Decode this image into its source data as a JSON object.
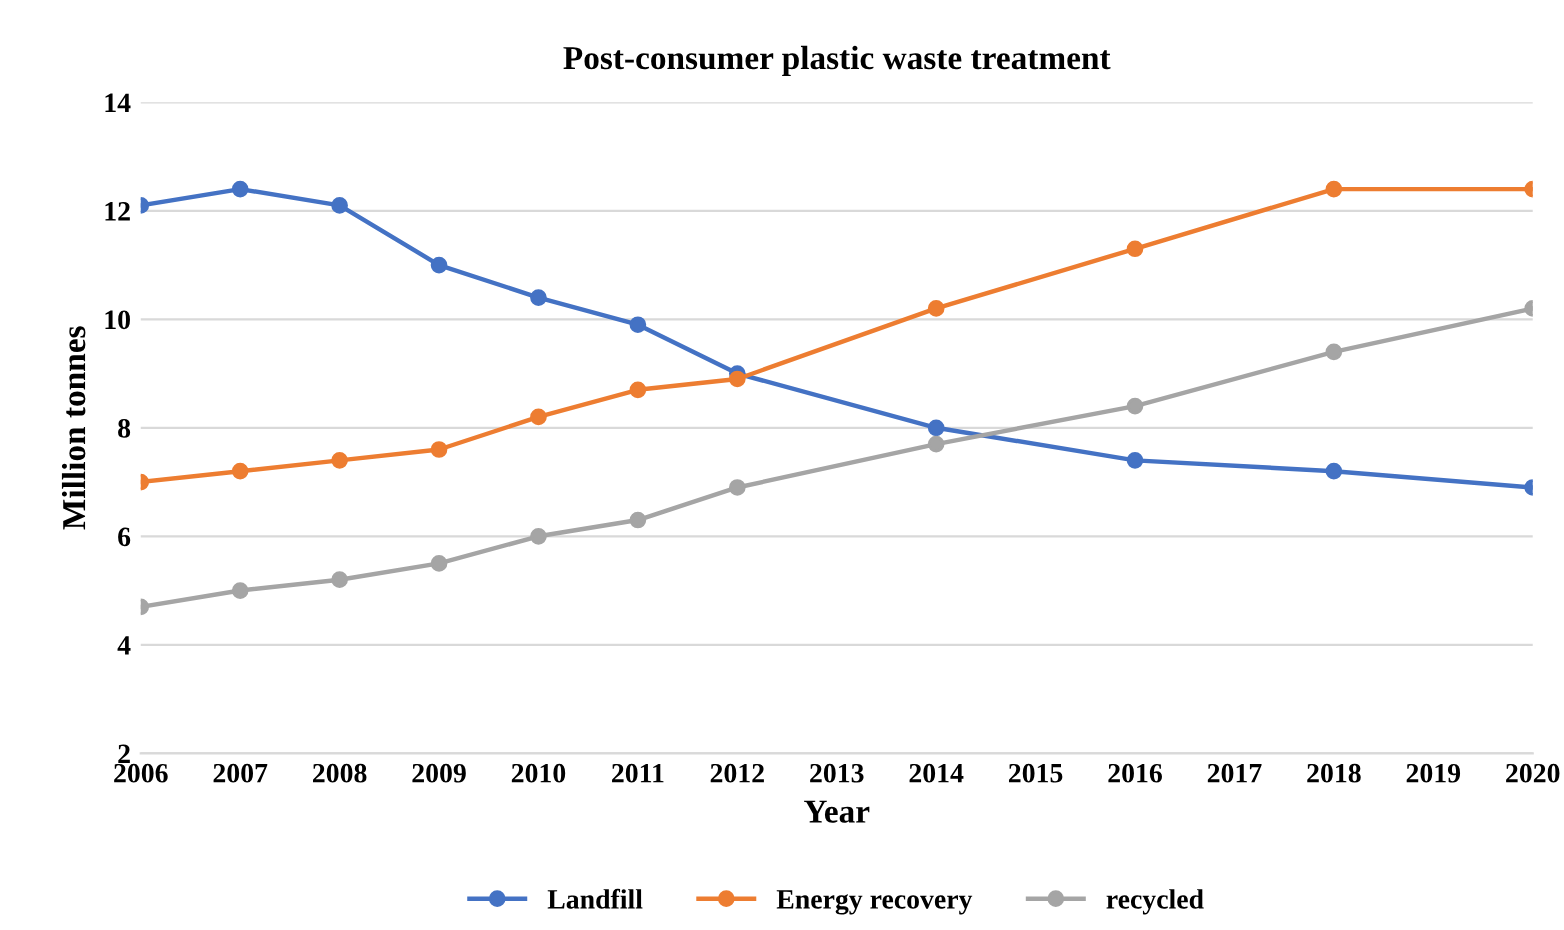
{
  "chart_data": {
    "type": "line",
    "title": "Post-consumer plastic waste treatment",
    "xlabel": "Year",
    "ylabel": "Million tonnes",
    "x": [
      2006,
      2007,
      2008,
      2009,
      2010,
      2011,
      2012,
      2014,
      2016,
      2018,
      2020
    ],
    "series": [
      {
        "name": "Landfill",
        "color": "#4472c4",
        "values": [
          12.1,
          12.4,
          12.1,
          11.0,
          10.4,
          9.9,
          9.0,
          8.0,
          7.4,
          7.2,
          6.9
        ]
      },
      {
        "name": "Energy recovery",
        "color": "#ed7d31",
        "values": [
          7.0,
          7.2,
          7.4,
          7.6,
          8.2,
          8.7,
          8.9,
          10.2,
          11.3,
          12.4,
          12.4
        ]
      },
      {
        "name": "recycled",
        "color": "#a5a5a5",
        "values": [
          4.7,
          5.0,
          5.2,
          5.5,
          6.0,
          6.3,
          6.9,
          7.7,
          8.4,
          9.4,
          10.2
        ]
      }
    ],
    "xlim": [
      2006,
      2020
    ],
    "xticks": [
      2006,
      2007,
      2008,
      2009,
      2010,
      2011,
      2012,
      2013,
      2014,
      2015,
      2016,
      2017,
      2018,
      2019,
      2020
    ],
    "ylim": [
      2,
      14
    ],
    "yticks": [
      2,
      4,
      6,
      8,
      10,
      12,
      14
    ],
    "grid": "y",
    "legend": "bottom",
    "marker": "circle",
    "line_style": "solid"
  }
}
